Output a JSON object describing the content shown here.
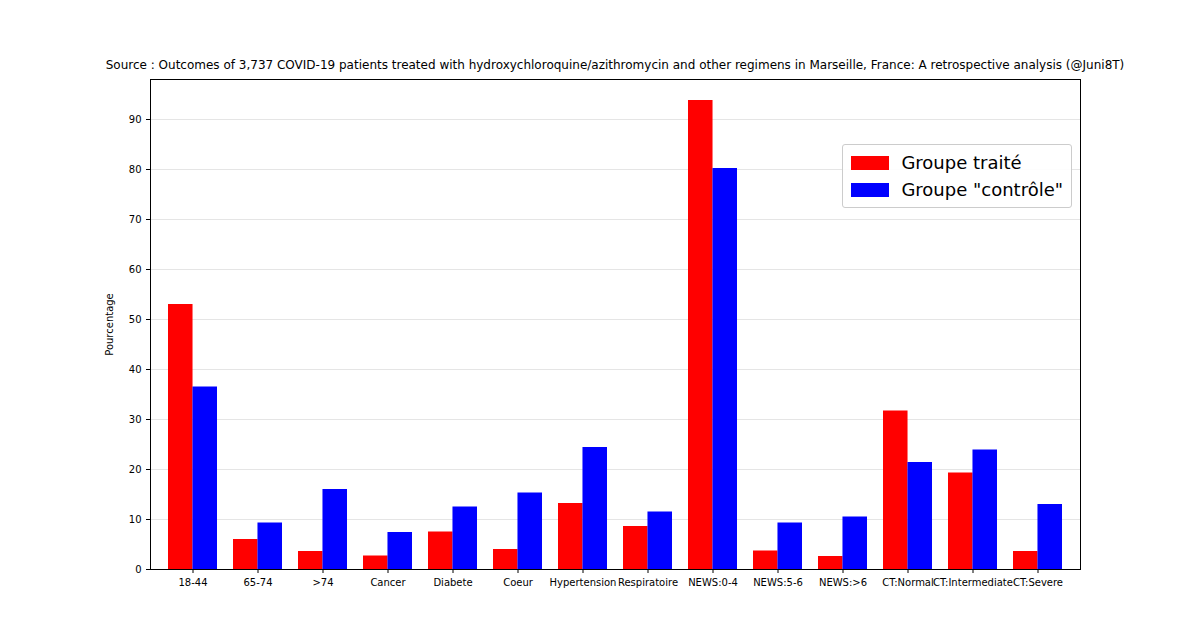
{
  "chart_data": {
    "type": "bar",
    "title": "Source : Outcomes of 3,737 COVID-19 patients treated with hydroxychloroquine/azithromycin and other regimens in Marseille, France: A retrospective analysis (@Juni8T)",
    "y_label": "Pourcentage",
    "categories": [
      "18-44",
      "65-74",
      ">74",
      "Cancer",
      "Diabete",
      "Coeur",
      "Hypertension",
      "Respiratoire",
      "NEWS:0-4",
      "NEWS:5-6",
      "NEWS:>6",
      "CT:Normal",
      "CT:Intermediate",
      "CT:Severe"
    ],
    "series": [
      {
        "name": "Groupe traité",
        "color": "red",
        "values": [
          53,
          6,
          3.6,
          2.7,
          7.5,
          4,
          13.2,
          8.6,
          93.8,
          3.7,
          2.6,
          31.7,
          19.3,
          3.6
        ]
      },
      {
        "name": "Groupe \"contrôle\"",
        "color": "blue",
        "values": [
          36.5,
          9.3,
          16,
          7.4,
          12.5,
          15.3,
          24.4,
          11.5,
          80.2,
          9.3,
          10.5,
          21.4,
          23.9,
          13
        ]
      }
    ],
    "ylim": [
      0,
      98
    ],
    "yticks": [
      0,
      10,
      20,
      30,
      40,
      50,
      60,
      70,
      80,
      90
    ],
    "grid": true,
    "legend": "upper right"
  }
}
